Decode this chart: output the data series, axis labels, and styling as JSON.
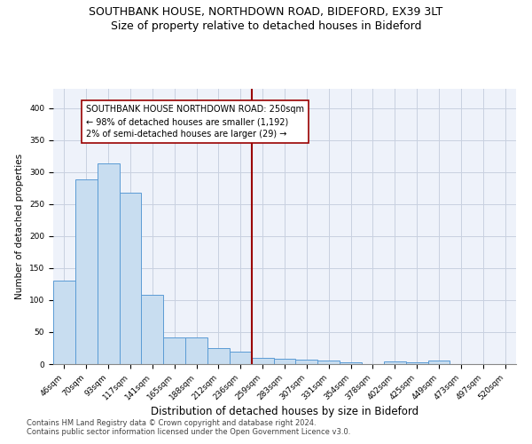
{
  "title": "SOUTHBANK HOUSE, NORTHDOWN ROAD, BIDEFORD, EX39 3LT",
  "subtitle": "Size of property relative to detached houses in Bideford",
  "xlabel": "Distribution of detached houses by size in Bideford",
  "ylabel": "Number of detached properties",
  "categories": [
    "46sqm",
    "70sqm",
    "93sqm",
    "117sqm",
    "141sqm",
    "165sqm",
    "188sqm",
    "212sqm",
    "236sqm",
    "259sqm",
    "283sqm",
    "307sqm",
    "331sqm",
    "354sqm",
    "378sqm",
    "402sqm",
    "425sqm",
    "449sqm",
    "473sqm",
    "497sqm",
    "520sqm"
  ],
  "values": [
    130,
    288,
    313,
    268,
    108,
    42,
    42,
    25,
    20,
    10,
    9,
    7,
    5,
    3,
    0,
    4,
    3,
    5,
    0,
    0,
    0
  ],
  "bar_color": "#c8ddf0",
  "bar_edge_color": "#5b9bd5",
  "bar_edge_width": 0.7,
  "vline_color": "#990000",
  "annotation_box_text": "SOUTHBANK HOUSE NORTHDOWN ROAD: 250sqm\n← 98% of detached houses are smaller (1,192)\n2% of semi-detached houses are larger (29) →",
  "annotation_box_color": "#990000",
  "ylim": [
    0,
    430
  ],
  "yticks": [
    0,
    50,
    100,
    150,
    200,
    250,
    300,
    350,
    400
  ],
  "footer1": "Contains HM Land Registry data © Crown copyright and database right 2024.",
  "footer2": "Contains public sector information licensed under the Open Government Licence v3.0.",
  "grid_color": "#c8d0e0",
  "background_color": "#eef2fa",
  "title_fontsize": 9,
  "subtitle_fontsize": 9,
  "xlabel_fontsize": 8.5,
  "ylabel_fontsize": 7.5,
  "tick_fontsize": 6.5,
  "annotation_fontsize": 7,
  "footer_fontsize": 6
}
